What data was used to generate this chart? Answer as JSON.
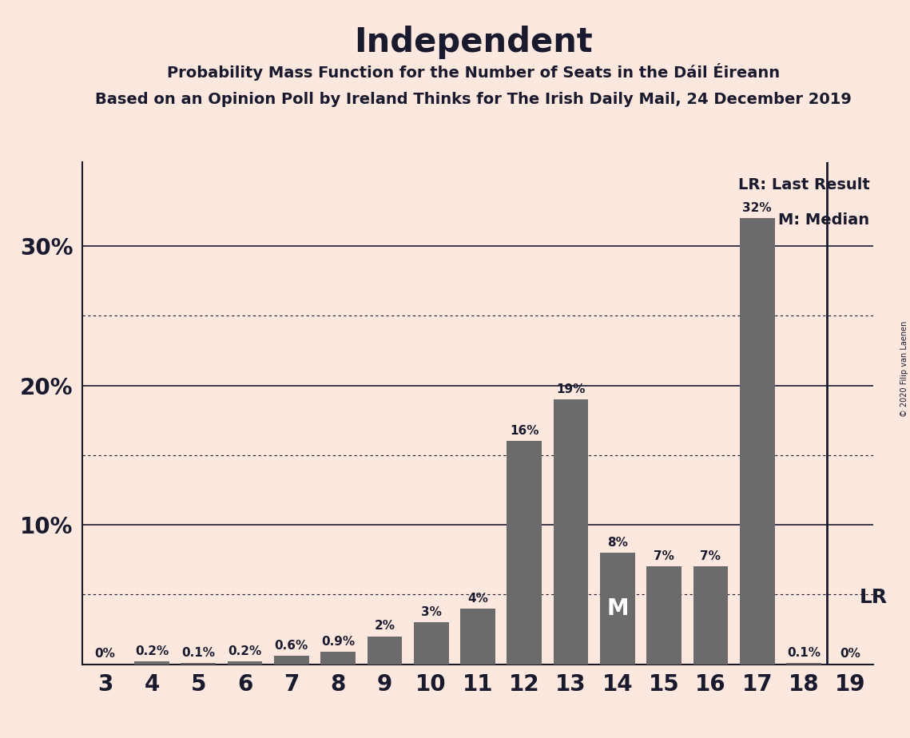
{
  "title": "Independent",
  "subtitle1": "Probability Mass Function for the Number of Seats in the Dáil Éireann",
  "subtitle2": "Based on an Opinion Poll by Ireland Thinks for The Irish Daily Mail, 24 December 2019",
  "copyright": "© 2020 Filip van Laenen",
  "categories": [
    3,
    4,
    5,
    6,
    7,
    8,
    9,
    10,
    11,
    12,
    13,
    14,
    15,
    16,
    17,
    18,
    19
  ],
  "values": [
    0.0,
    0.2,
    0.1,
    0.2,
    0.6,
    0.9,
    2.0,
    3.0,
    4.0,
    16.0,
    19.0,
    8.0,
    7.0,
    7.0,
    32.0,
    0.1,
    0.0
  ],
  "labels": [
    "0%",
    "0.2%",
    "0.1%",
    "0.2%",
    "0.6%",
    "0.9%",
    "2%",
    "3%",
    "4%",
    "16%",
    "19%",
    "8%",
    "7%",
    "7%",
    "32%",
    "0.1%",
    "0%"
  ],
  "bar_color": "#6b6b6b",
  "background_color": "#fce8de",
  "text_color": "#1a1a2e",
  "median_seat": 14,
  "last_result_seat": 19,
  "median_label": "M",
  "last_result_label": "LR",
  "legend_lr": "LR: Last Result",
  "legend_m": "M: Median",
  "solid_yticks": [
    0,
    10,
    20,
    30
  ],
  "dotted_yticks": [
    5,
    15,
    25
  ],
  "ylim": [
    0,
    36
  ],
  "xlim": [
    2.5,
    19.5
  ]
}
